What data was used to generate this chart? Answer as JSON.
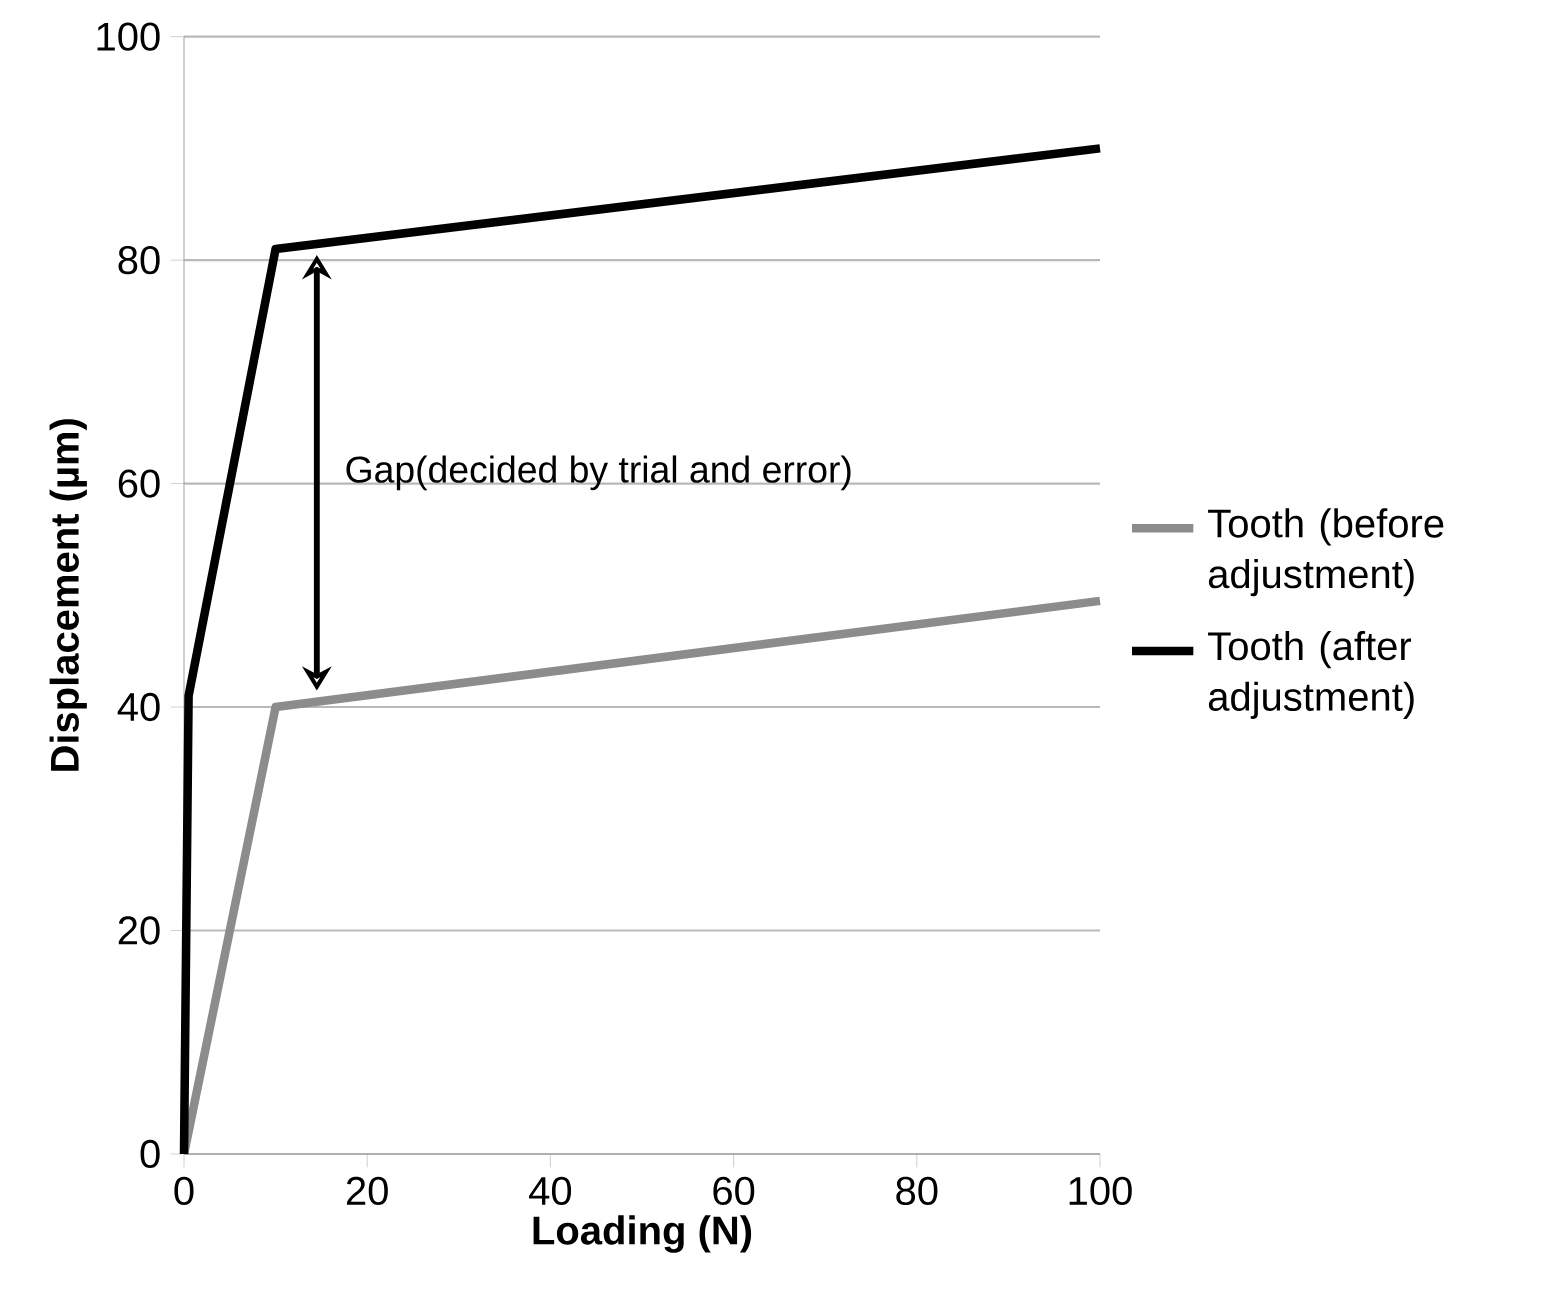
{
  "chart_data": {
    "type": "line",
    "xlabel": "Loading (N)",
    "ylabel": "Displacement (µm)",
    "xlim": [
      0,
      100
    ],
    "ylim": [
      0,
      100
    ],
    "xticks": [
      0,
      20,
      40,
      60,
      80,
      100
    ],
    "yticks": [
      0,
      20,
      40,
      60,
      80,
      100
    ],
    "grid": "y",
    "legend": "right",
    "marker": "none",
    "line_style": "solid",
    "series": [
      {
        "name": "Tooth (before adjustment)",
        "color": "#8c8c8c",
        "x": [
          0,
          10,
          100
        ],
        "values": [
          0,
          40,
          49.5
        ]
      },
      {
        "name": "Tooth (after adjustment)",
        "color": "#000000",
        "x": [
          0,
          0.5,
          10,
          100
        ],
        "values": [
          0,
          41,
          81,
          90
        ]
      }
    ],
    "annotations": [
      "Gap(decided by trial and error)"
    ]
  }
}
